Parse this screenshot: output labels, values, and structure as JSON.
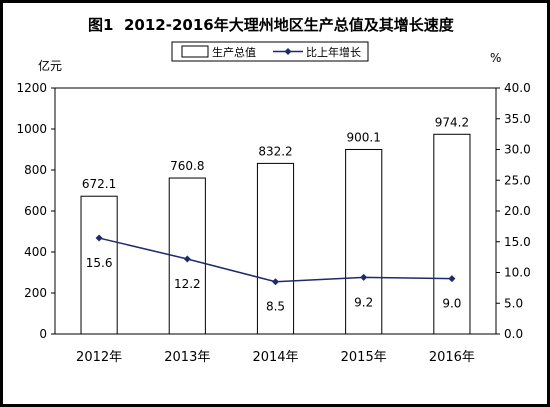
{
  "chart_data": {
    "type": "bar+line",
    "title_fig": "图1",
    "title": "2012-2016年大理州地区生产总值及其增长速度",
    "categories": [
      "2012年",
      "2013年",
      "2014年",
      "2015年",
      "2016年"
    ],
    "series": [
      {
        "name": "生产总值",
        "type": "bar",
        "axis": "left",
        "values": [
          672.1,
          760.8,
          832.2,
          900.1,
          974.2
        ],
        "value_labels": [
          "672.1",
          "760.8",
          "832.2",
          "900.1",
          "974.2"
        ]
      },
      {
        "name": "比上年增长",
        "type": "line",
        "axis": "right",
        "values": [
          15.6,
          12.2,
          8.5,
          9.2,
          9.0
        ],
        "value_labels": [
          "15.6",
          "12.2",
          "8.5",
          "9.2",
          "9.0"
        ],
        "color": "#1f2a6b"
      }
    ],
    "left_axis": {
      "unit": "亿元",
      "range": [
        0,
        1200
      ],
      "ticks": [
        "0",
        "200",
        "400",
        "600",
        "800",
        "1000",
        "1200"
      ]
    },
    "right_axis": {
      "unit": "%",
      "range": [
        0,
        40
      ],
      "ticks": [
        "0.0",
        "5.0",
        "10.0",
        "15.0",
        "20.0",
        "25.0",
        "30.0",
        "35.0",
        "40.0"
      ]
    },
    "legend_position": "top-center",
    "grid": false
  }
}
